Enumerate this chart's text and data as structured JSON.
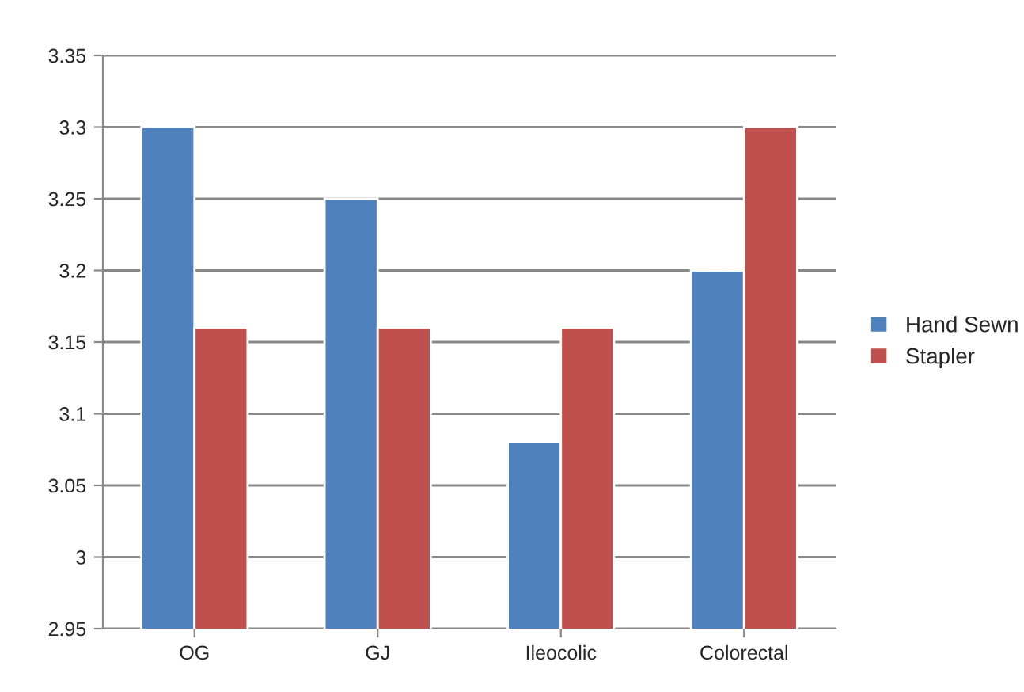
{
  "chart_data": {
    "type": "bar",
    "categories": [
      "OG",
      "GJ",
      "Ileocolic",
      "Colorectal"
    ],
    "series": [
      {
        "name": "Hand Sewn",
        "color": "#4f81bd",
        "values": [
          3.3,
          3.25,
          3.08,
          3.2
        ]
      },
      {
        "name": "Stapler",
        "color": "#c0504d",
        "values": [
          3.16,
          3.16,
          3.16,
          3.3
        ]
      }
    ],
    "ylim": [
      2.95,
      3.35
    ],
    "yticks": [
      2.95,
      3,
      3.05,
      3.1,
      3.15,
      3.2,
      3.25,
      3.3,
      3.35
    ],
    "grid": "y",
    "legend": "right"
  }
}
